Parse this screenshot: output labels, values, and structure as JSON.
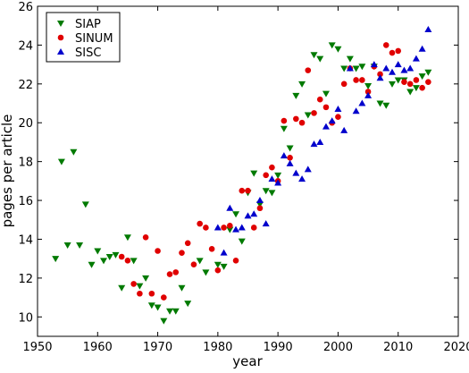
{
  "chart_data": {
    "type": "scatter",
    "xlabel": "year",
    "ylabel": "pages per article",
    "xlim": [
      1950,
      2020
    ],
    "ylim": [
      9,
      26
    ],
    "xticks": [
      1950,
      1960,
      1970,
      1980,
      1990,
      2000,
      2010,
      2020
    ],
    "yticks": [
      10,
      12,
      14,
      16,
      18,
      20,
      22,
      24,
      26
    ],
    "grid": false,
    "legend_position": "top-left",
    "series": [
      {
        "name": "SIAP",
        "marker": "triangle-down",
        "color": "#007a00",
        "points": [
          [
            1953,
            13.0
          ],
          [
            1954,
            18.0
          ],
          [
            1955,
            13.7
          ],
          [
            1956,
            18.5
          ],
          [
            1957,
            13.7
          ],
          [
            1958,
            15.8
          ],
          [
            1959,
            12.7
          ],
          [
            1960,
            13.4
          ],
          [
            1961,
            12.9
          ],
          [
            1962,
            13.1
          ],
          [
            1963,
            13.2
          ],
          [
            1964,
            11.5
          ],
          [
            1965,
            14.1
          ],
          [
            1966,
            12.9
          ],
          [
            1967,
            11.6
          ],
          [
            1968,
            12.0
          ],
          [
            1969,
            10.6
          ],
          [
            1970,
            10.5
          ],
          [
            1971,
            9.8
          ],
          [
            1972,
            10.3
          ],
          [
            1973,
            10.3
          ],
          [
            1974,
            11.5
          ],
          [
            1975,
            10.7
          ],
          [
            1977,
            12.9
          ],
          [
            1978,
            12.3
          ],
          [
            1980,
            12.7
          ],
          [
            1981,
            12.6
          ],
          [
            1982,
            14.5
          ],
          [
            1983,
            15.3
          ],
          [
            1984,
            13.9
          ],
          [
            1985,
            16.4
          ],
          [
            1986,
            17.4
          ],
          [
            1987,
            15.8
          ],
          [
            1988,
            16.5
          ],
          [
            1989,
            16.4
          ],
          [
            1990,
            17.3
          ],
          [
            1991,
            19.7
          ],
          [
            1992,
            18.7
          ],
          [
            1993,
            21.4
          ],
          [
            1994,
            22.0
          ],
          [
            1995,
            20.4
          ],
          [
            1996,
            23.5
          ],
          [
            1997,
            23.3
          ],
          [
            1998,
            21.5
          ],
          [
            1999,
            24.0
          ],
          [
            2000,
            23.8
          ],
          [
            2001,
            22.8
          ],
          [
            2002,
            23.3
          ],
          [
            2003,
            22.8
          ],
          [
            2004,
            22.9
          ],
          [
            2005,
            21.9
          ],
          [
            2006,
            22.9
          ],
          [
            2007,
            21.0
          ],
          [
            2008,
            20.9
          ],
          [
            2009,
            22.0
          ],
          [
            2010,
            22.2
          ],
          [
            2011,
            22.2
          ],
          [
            2012,
            21.6
          ],
          [
            2013,
            21.8
          ],
          [
            2014,
            22.4
          ],
          [
            2015,
            22.6
          ]
        ]
      },
      {
        "name": "SINUM",
        "marker": "circle",
        "color": "#e00000",
        "points": [
          [
            1964,
            13.1
          ],
          [
            1965,
            12.9
          ],
          [
            1966,
            11.7
          ],
          [
            1967,
            11.2
          ],
          [
            1968,
            14.1
          ],
          [
            1969,
            11.2
          ],
          [
            1970,
            13.4
          ],
          [
            1971,
            11.0
          ],
          [
            1972,
            12.2
          ],
          [
            1973,
            12.3
          ],
          [
            1974,
            13.3
          ],
          [
            1975,
            13.8
          ],
          [
            1976,
            12.7
          ],
          [
            1977,
            14.8
          ],
          [
            1978,
            14.6
          ],
          [
            1979,
            13.5
          ],
          [
            1980,
            12.4
          ],
          [
            1981,
            14.6
          ],
          [
            1982,
            14.7
          ],
          [
            1983,
            12.9
          ],
          [
            1984,
            16.5
          ],
          [
            1985,
            16.5
          ],
          [
            1986,
            14.6
          ],
          [
            1987,
            15.6
          ],
          [
            1988,
            17.3
          ],
          [
            1989,
            17.7
          ],
          [
            1990,
            17.0
          ],
          [
            1991,
            20.1
          ],
          [
            1992,
            18.2
          ],
          [
            1993,
            20.2
          ],
          [
            1994,
            20.0
          ],
          [
            1995,
            22.7
          ],
          [
            1996,
            20.5
          ],
          [
            1997,
            21.2
          ],
          [
            1998,
            20.8
          ],
          [
            1999,
            20.0
          ],
          [
            2000,
            20.3
          ],
          [
            2001,
            22.0
          ],
          [
            2002,
            22.8
          ],
          [
            2003,
            22.2
          ],
          [
            2004,
            22.2
          ],
          [
            2005,
            21.6
          ],
          [
            2006,
            22.9
          ],
          [
            2007,
            22.5
          ],
          [
            2008,
            24.0
          ],
          [
            2009,
            23.6
          ],
          [
            2010,
            23.7
          ],
          [
            2011,
            22.1
          ],
          [
            2012,
            22.0
          ],
          [
            2013,
            22.2
          ],
          [
            2014,
            21.8
          ],
          [
            2015,
            22.1
          ]
        ]
      },
      {
        "name": "SISC",
        "marker": "triangle-up",
        "color": "#0000cc",
        "points": [
          [
            1980,
            14.6
          ],
          [
            1981,
            13.3
          ],
          [
            1982,
            15.6
          ],
          [
            1983,
            14.5
          ],
          [
            1984,
            14.6
          ],
          [
            1985,
            15.2
          ],
          [
            1986,
            15.3
          ],
          [
            1987,
            16.0
          ],
          [
            1988,
            14.8
          ],
          [
            1989,
            17.1
          ],
          [
            1990,
            16.9
          ],
          [
            1991,
            18.3
          ],
          [
            1992,
            17.9
          ],
          [
            1993,
            17.4
          ],
          [
            1994,
            17.1
          ],
          [
            1995,
            17.6
          ],
          [
            1996,
            18.9
          ],
          [
            1997,
            19.0
          ],
          [
            1998,
            19.8
          ],
          [
            1999,
            20.1
          ],
          [
            2000,
            20.7
          ],
          [
            2001,
            19.6
          ],
          [
            2002,
            22.8
          ],
          [
            2003,
            20.6
          ],
          [
            2004,
            21.0
          ],
          [
            2005,
            21.4
          ],
          [
            2006,
            23.0
          ],
          [
            2007,
            22.3
          ],
          [
            2008,
            22.8
          ],
          [
            2009,
            22.6
          ],
          [
            2010,
            23.0
          ],
          [
            2011,
            22.7
          ],
          [
            2012,
            22.8
          ],
          [
            2013,
            23.3
          ],
          [
            2014,
            23.8
          ],
          [
            2015,
            24.8
          ]
        ]
      }
    ]
  }
}
